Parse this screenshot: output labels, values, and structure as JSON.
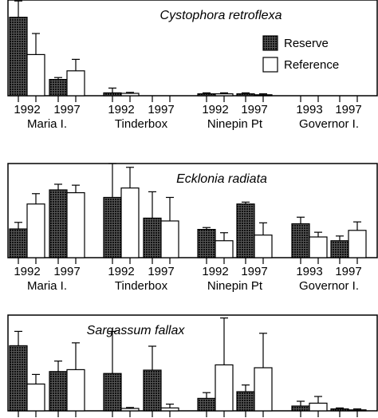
{
  "chart_data": [
    {
      "type": "bar",
      "title": "Cystophora retroflexa",
      "categories": [
        "1992",
        "1997",
        "1992",
        "1997",
        "1992",
        "1997",
        "1993",
        "1997"
      ],
      "groups": [
        "Maria I.",
        "Tinderbox",
        "Ninepin Pt",
        "Governor I."
      ],
      "series": [
        {
          "name": "Reserve",
          "color": "#2b2b2b",
          "values": [
            82,
            17,
            3,
            0,
            2,
            2,
            0,
            0
          ],
          "errors": [
            17,
            2,
            5,
            0,
            1,
            1,
            0,
            0
          ]
        },
        {
          "name": "Reference",
          "color": "#ffffff",
          "values": [
            43,
            26,
            2.5,
            0,
            2,
            1,
            0,
            0
          ],
          "errors": [
            22,
            12,
            1,
            0,
            1,
            1,
            0,
            0
          ]
        }
      ],
      "ylim": [
        0,
        100
      ],
      "legend": "upper right"
    },
    {
      "type": "bar",
      "title": "Ecklonia radiata",
      "categories": [
        "1992",
        "1997",
        "1992",
        "1997",
        "1992",
        "1997",
        "1993",
        "1997"
      ],
      "groups": [
        "Maria I.",
        "Tinderbox",
        "Ninepin Pt",
        "Governor I."
      ],
      "series": [
        {
          "color": "#2b2b2b",
          "values": [
            30.5,
            72,
            64,
            42,
            30,
            57,
            36,
            18
          ],
          "errors": [
            7,
            6,
            36,
            28,
            2,
            2,
            7,
            5
          ]
        },
        {
          "color": "#ffffff",
          "values": [
            57,
            69,
            74,
            39,
            18,
            24,
            22,
            29
          ],
          "errors": [
            11,
            8,
            22,
            25,
            8.5,
            13,
            5,
            9
          ]
        }
      ],
      "ylim": [
        0,
        100
      ]
    },
    {
      "type": "bar",
      "title": "Sargassum fallax",
      "categories": [
        null,
        null,
        null,
        null,
        null,
        null,
        null,
        null
      ],
      "series": [
        {
          "color": "#2b2b2b",
          "values": [
            68,
            41,
            39,
            42.5,
            13,
            20,
            5,
            2
          ],
          "errors": [
            15,
            11,
            44,
            25,
            6,
            7,
            5,
            1
          ]
        },
        {
          "color": "#ffffff",
          "values": [
            28,
            43,
            2.5,
            3,
            48,
            45,
            8,
            1
          ],
          "errors": [
            10,
            28,
            1,
            4,
            49,
            36,
            7,
            1
          ]
        }
      ],
      "ylim": [
        0,
        100
      ]
    }
  ]
}
